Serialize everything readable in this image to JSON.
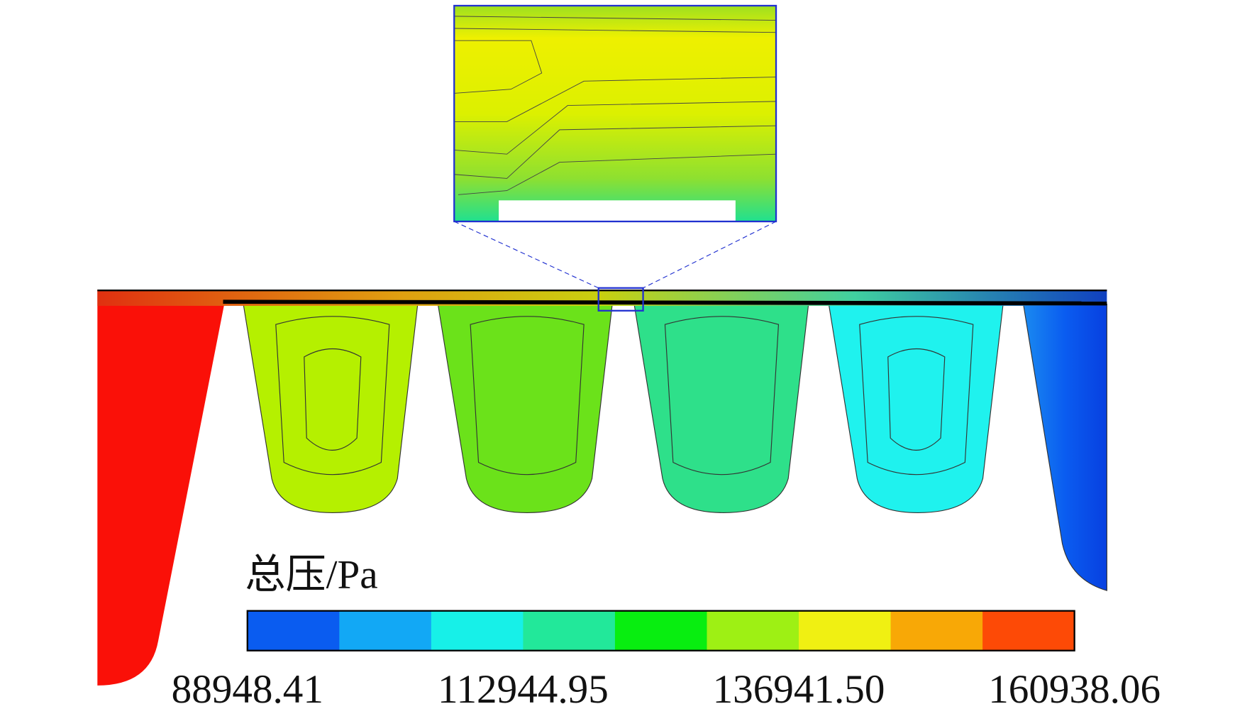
{
  "chart_data": {
    "type": "contour",
    "colorbar_title": "总压/Pa",
    "clim": [
      88948.41,
      160938.06
    ],
    "cticks": [
      88948.41,
      112944.95,
      {
        "value": 136941.5,
        "label": "136941.50"
      },
      160938.06
    ],
    "colors": [
      "#0a5cf0",
      "#12a8f5",
      "#17f0e8",
      "#22e89a",
      "#08ee10",
      "#9ef014",
      "#f0f012",
      "#f8a806",
      "#fd4a06"
    ]
  }
}
